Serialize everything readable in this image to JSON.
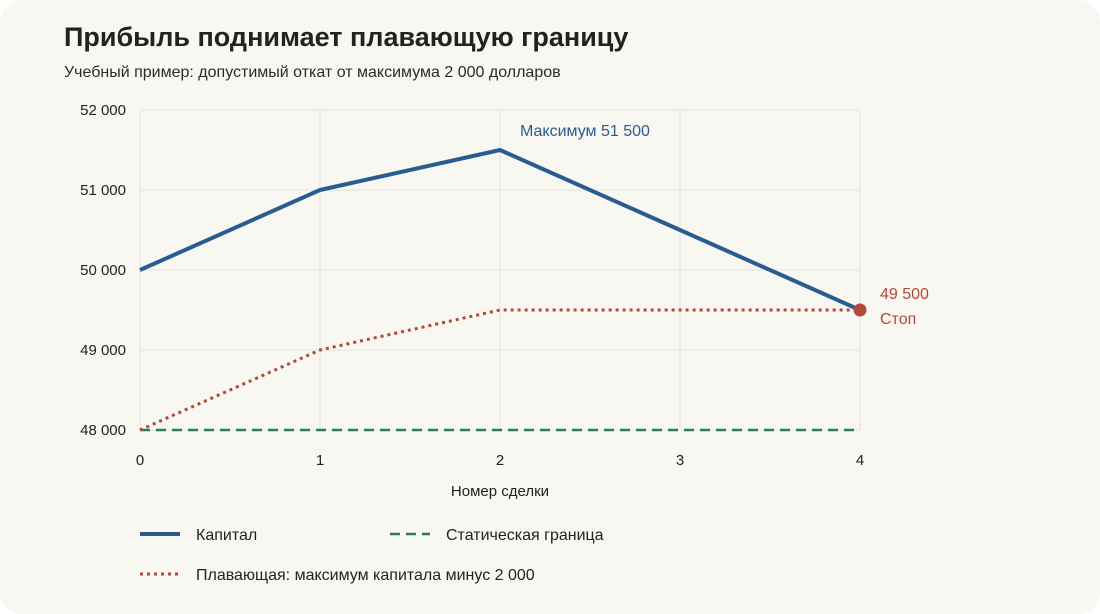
{
  "chart_data": {
    "type": "line",
    "title": "Прибыль поднимает плавающую границу",
    "subtitle": "Учебный пример: допустимый откат от максимума 2 000 долларов",
    "xlabel": "Номер сделки",
    "ylabel": "",
    "x": [
      0,
      1,
      2,
      3,
      4
    ],
    "xticks": [
      "0",
      "1",
      "2",
      "3",
      "4"
    ],
    "xlim": [
      0,
      4
    ],
    "ylim": [
      48000,
      52000
    ],
    "yticks": [
      {
        "value": 48000,
        "label": "48 000"
      },
      {
        "value": 49000,
        "label": "49 000"
      },
      {
        "value": 50000,
        "label": "50 000"
      },
      {
        "value": 51000,
        "label": "51 000"
      },
      {
        "value": 52000,
        "label": "52 000"
      }
    ],
    "grid": true,
    "legend_position": "bottom",
    "series": [
      {
        "key": "equity",
        "name": "Капитал",
        "values": [
          50000,
          51000,
          51500,
          50500,
          49500
        ],
        "color": "#2a5d8f",
        "style": "solid"
      },
      {
        "key": "static",
        "name": "Статическая граница",
        "values": [
          48000,
          48000,
          48000,
          48000,
          48000
        ],
        "color": "#2e7d4f",
        "style": "dashed"
      },
      {
        "key": "trailing",
        "name": "Плавающая: максимум капитала минус 2 000",
        "values": [
          48000,
          49000,
          49500,
          49500,
          49500
        ],
        "color": "#b04a3a",
        "style": "dotted"
      }
    ],
    "annotations": [
      {
        "key": "max",
        "text": "Максимум 51 500",
        "x": 2,
        "y": 51500,
        "color": "#2a5d8f"
      },
      {
        "key": "stop",
        "value_text": "49 500",
        "text": "Стоп",
        "x": 4,
        "y": 49500,
        "color": "#b04a3a"
      }
    ]
  }
}
